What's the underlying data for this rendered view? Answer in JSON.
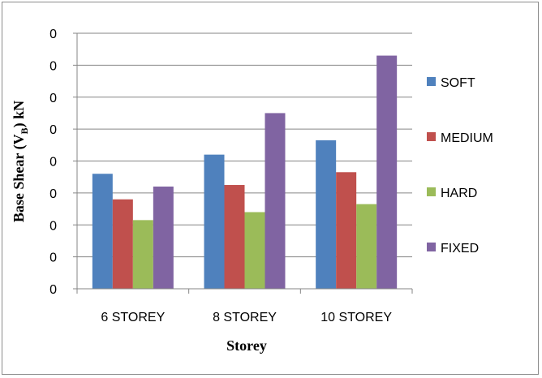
{
  "chart_data": {
    "type": "bar",
    "categories": [
      "6 STOREY",
      "8 STOREY",
      "10 STOREY"
    ],
    "series": [
      {
        "name": "SOFT",
        "color": "#4F81BD",
        "values": [
          3.6,
          4.2,
          4.65
        ]
      },
      {
        "name": "MEDIUM",
        "color": "#C0504D",
        "values": [
          2.8,
          3.25,
          3.65
        ]
      },
      {
        "name": "HARD",
        "color": "#9BBB59",
        "values": [
          2.15,
          2.4,
          2.65
        ]
      },
      {
        "name": "FIXED",
        "color": "#8064A2",
        "values": [
          3.2,
          5.5,
          7.3
        ]
      }
    ],
    "y_tick_labels": [
      "0",
      "0",
      "0",
      "0",
      "0",
      "0",
      "0",
      "0",
      "0"
    ],
    "ylim": [
      0,
      8
    ],
    "xlabel": "Storey",
    "ylabel_main": "Base Shear (V",
    "ylabel_sub": "B",
    "ylabel_tail": ") kN",
    "grid": true,
    "legend_position": "right"
  }
}
